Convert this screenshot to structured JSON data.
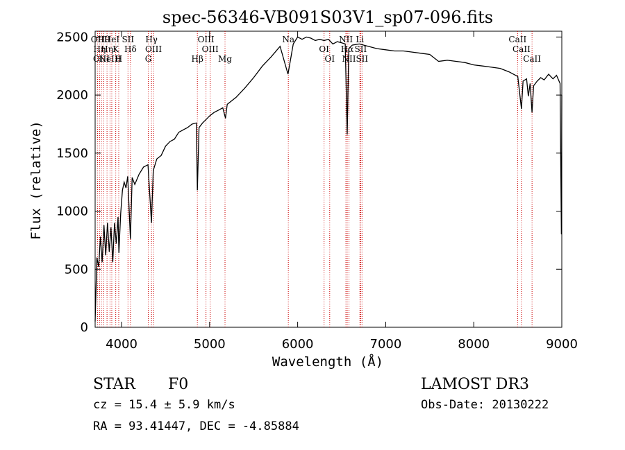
{
  "chart_data": {
    "type": "line",
    "title": "spec-56346-VB091S03V1_sp07-096.fits",
    "xlabel": "Wavelength (Å)",
    "ylabel": "Flux (relative)",
    "xlim": [
      3700,
      9000
    ],
    "ylim": [
      0,
      2550
    ],
    "xticks": [
      4000,
      5000,
      6000,
      7000,
      8000,
      9000
    ],
    "yticks": [
      0,
      500,
      1000,
      1500,
      2000,
      2500
    ],
    "grid": false,
    "series": [
      {
        "color": "#000000",
        "points": [
          [
            3700,
            50
          ],
          [
            3720,
            600
          ],
          [
            3740,
            520
          ],
          [
            3760,
            780
          ],
          [
            3780,
            560
          ],
          [
            3800,
            880
          ],
          [
            3820,
            620
          ],
          [
            3840,
            900
          ],
          [
            3860,
            650
          ],
          [
            3880,
            860
          ],
          [
            3900,
            560
          ],
          [
            3920,
            900
          ],
          [
            3940,
            720
          ],
          [
            3960,
            950
          ],
          [
            3970,
            640
          ],
          [
            3990,
            980
          ],
          [
            4010,
            1180
          ],
          [
            4030,
            1250
          ],
          [
            4050,
            1200
          ],
          [
            4070,
            1300
          ],
          [
            4101,
            760
          ],
          [
            4120,
            1290
          ],
          [
            4150,
            1230
          ],
          [
            4200,
            1320
          ],
          [
            4250,
            1380
          ],
          [
            4300,
            1400
          ],
          [
            4340,
            900
          ],
          [
            4360,
            1350
          ],
          [
            4400,
            1450
          ],
          [
            4450,
            1480
          ],
          [
            4500,
            1560
          ],
          [
            4550,
            1600
          ],
          [
            4600,
            1620
          ],
          [
            4650,
            1680
          ],
          [
            4700,
            1700
          ],
          [
            4750,
            1720
          ],
          [
            4800,
            1750
          ],
          [
            4850,
            1760
          ],
          [
            4861,
            1180
          ],
          [
            4880,
            1720
          ],
          [
            4920,
            1760
          ],
          [
            4960,
            1790
          ],
          [
            5000,
            1820
          ],
          [
            5050,
            1850
          ],
          [
            5100,
            1870
          ],
          [
            5150,
            1890
          ],
          [
            5180,
            1800
          ],
          [
            5200,
            1920
          ],
          [
            5300,
            1980
          ],
          [
            5400,
            2060
          ],
          [
            5500,
            2150
          ],
          [
            5600,
            2250
          ],
          [
            5700,
            2330
          ],
          [
            5800,
            2420
          ],
          [
            5890,
            2180
          ],
          [
            5950,
            2440
          ],
          [
            6000,
            2500
          ],
          [
            6050,
            2480
          ],
          [
            6100,
            2500
          ],
          [
            6150,
            2490
          ],
          [
            6200,
            2470
          ],
          [
            6250,
            2480
          ],
          [
            6300,
            2470
          ],
          [
            6350,
            2480
          ],
          [
            6400,
            2440
          ],
          [
            6450,
            2460
          ],
          [
            6500,
            2450
          ],
          [
            6540,
            2440
          ],
          [
            6563,
            1660
          ],
          [
            6580,
            2400
          ],
          [
            6620,
            2430
          ],
          [
            6700,
            2440
          ],
          [
            6800,
            2420
          ],
          [
            6900,
            2400
          ],
          [
            7000,
            2390
          ],
          [
            7100,
            2380
          ],
          [
            7200,
            2380
          ],
          [
            7300,
            2370
          ],
          [
            7400,
            2360
          ],
          [
            7500,
            2350
          ],
          [
            7600,
            2290
          ],
          [
            7700,
            2300
          ],
          [
            7800,
            2290
          ],
          [
            7900,
            2280
          ],
          [
            8000,
            2260
          ],
          [
            8100,
            2250
          ],
          [
            8200,
            2240
          ],
          [
            8300,
            2230
          ],
          [
            8400,
            2200
          ],
          [
            8500,
            2160
          ],
          [
            8542,
            1880
          ],
          [
            8560,
            2120
          ],
          [
            8600,
            2140
          ],
          [
            8620,
            1990
          ],
          [
            8640,
            2100
          ],
          [
            8662,
            1850
          ],
          [
            8680,
            2080
          ],
          [
            8720,
            2120
          ],
          [
            8760,
            2150
          ],
          [
            8800,
            2130
          ],
          [
            8850,
            2180
          ],
          [
            8900,
            2140
          ],
          [
            8940,
            2170
          ],
          [
            8980,
            2100
          ],
          [
            8995,
            800
          ],
          [
            9000,
            2000
          ]
        ]
      }
    ],
    "lines": [
      {
        "x": 3727,
        "labels": [
          "OII"
        ]
      },
      {
        "x": 3750,
        "labels": [
          "Hη"
        ]
      },
      {
        "x": 3771,
        "labels": [
          "OIII"
        ]
      },
      {
        "x": 3798,
        "labels": [
          "Hθ"
        ]
      },
      {
        "x": 3835,
        "labels": [
          "Hη"
        ]
      },
      {
        "x": 3869,
        "labels": [
          "NeIII"
        ]
      },
      {
        "x": 3889,
        "labels": [
          "HeI"
        ]
      },
      {
        "x": 3934,
        "labels": [
          "K"
        ]
      },
      {
        "x": 3968,
        "labels": [
          "H"
        ]
      },
      {
        "x": 4073,
        "labels": [
          "SII"
        ]
      },
      {
        "x": 4101,
        "labels": [
          "Hδ"
        ]
      },
      {
        "x": 4304,
        "labels": [
          "G"
        ]
      },
      {
        "x": 4340,
        "labels": [
          "Hγ"
        ]
      },
      {
        "x": 4363,
        "labels": [
          "OIII"
        ]
      },
      {
        "x": 4861,
        "labels": [
          "Hβ"
        ]
      },
      {
        "x": 4959,
        "labels": [
          "OIII"
        ]
      },
      {
        "x": 5007,
        "labels": [
          "OIII"
        ]
      },
      {
        "x": 5175,
        "labels": [
          "Mg"
        ]
      },
      {
        "x": 5894,
        "labels": [
          "Na"
        ]
      },
      {
        "x": 6300,
        "labels": [
          "OI"
        ]
      },
      {
        "x": 6364,
        "labels": [
          "OI"
        ]
      },
      {
        "x": 6548,
        "labels": [
          "NII"
        ]
      },
      {
        "x": 6563,
        "labels": [
          "Hα"
        ]
      },
      {
        "x": 6583,
        "labels": [
          "NII"
        ]
      },
      {
        "x": 6707,
        "labels": [
          "Li"
        ]
      },
      {
        "x": 6716,
        "labels": [
          "SII"
        ]
      },
      {
        "x": 6731,
        "labels": [
          "SII"
        ]
      },
      {
        "x": 8498,
        "labels": [
          "CaII"
        ]
      },
      {
        "x": 8542,
        "labels": [
          "CaII"
        ]
      },
      {
        "x": 8662,
        "labels": [
          "CaII"
        ]
      }
    ],
    "line_color": "#cc0000"
  },
  "info": {
    "class": "STAR",
    "subclass": "F0",
    "survey": "LAMOST DR3",
    "cz": "cz = 15.4 ± 5.9 km/s",
    "obs_date": "Obs-Date: 20130222",
    "coords": "RA =  93.41447, DEC =  -4.85884"
  }
}
